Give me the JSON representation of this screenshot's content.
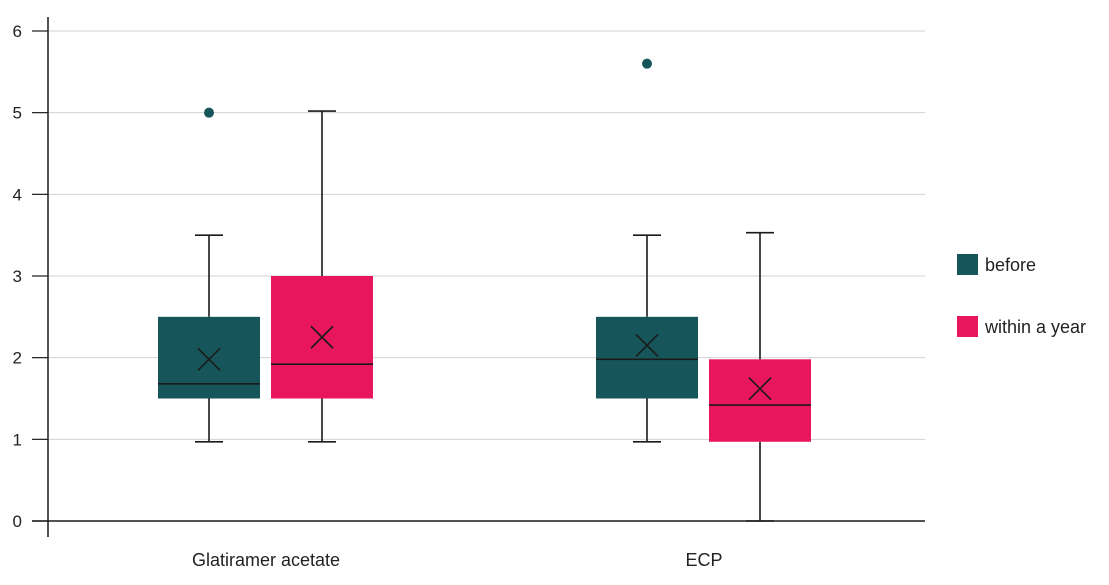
{
  "chart_data": {
    "type": "box",
    "title": "",
    "xlabel": "",
    "ylabel": "",
    "ylim": [
      0,
      6
    ],
    "yticks": [
      0,
      1,
      2,
      3,
      4,
      5,
      6
    ],
    "grid": true,
    "legend_position": "right",
    "categories": [
      "Glatiramer acetate",
      "ECP"
    ],
    "series": [
      {
        "name": "before",
        "color": "#16565b",
        "boxes": [
          {
            "category": "Glatiramer acetate",
            "min": 0.97,
            "q1": 1.5,
            "median": 1.68,
            "q3": 2.5,
            "max": 3.5,
            "mean": 1.98,
            "outliers": [
              5.0
            ]
          },
          {
            "category": "ECP",
            "min": 0.97,
            "q1": 1.5,
            "median": 1.98,
            "q3": 2.5,
            "max": 3.5,
            "mean": 2.15,
            "outliers": [
              5.6
            ]
          }
        ]
      },
      {
        "name": "within a year",
        "color": "#e8175d",
        "boxes": [
          {
            "category": "Glatiramer acetate",
            "min": 0.97,
            "q1": 1.5,
            "median": 1.92,
            "q3": 3.0,
            "max": 5.02,
            "mean": 2.25,
            "outliers": []
          },
          {
            "category": "ECP",
            "min": 0.0,
            "q1": 0.97,
            "median": 1.42,
            "q3": 1.98,
            "max": 3.53,
            "mean": 1.62,
            "outliers": []
          }
        ]
      }
    ]
  }
}
